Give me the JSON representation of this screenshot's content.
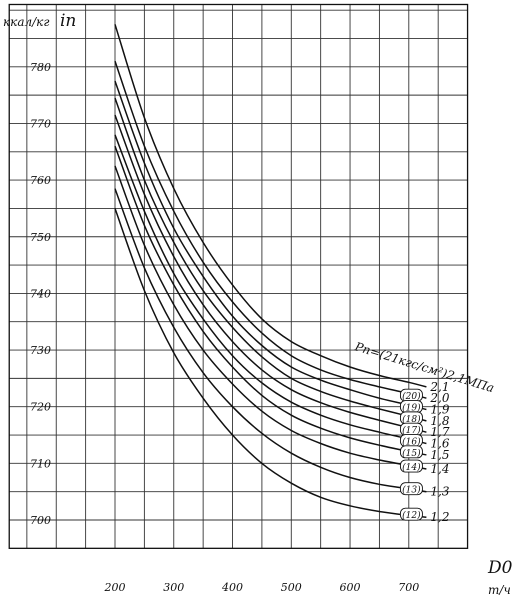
{
  "chart_data": {
    "type": "line",
    "y_unit": "ккал/кг",
    "y_symbol": "iп",
    "x_unit": "т/ч",
    "x_symbol": "D0",
    "xlim": [
      20,
      800
    ],
    "ylim": [
      695,
      791
    ],
    "x_ticks": [
      200,
      300,
      400,
      500,
      600,
      700
    ],
    "x_tick_labels": [
      "200",
      "300",
      "400",
      "500",
      "600",
      "700"
    ],
    "y_ticks": [
      700,
      710,
      720,
      730,
      740,
      750,
      760,
      770,
      780
    ],
    "y_tick_labels": [
      "700",
      "710",
      "720",
      "730",
      "740",
      "750",
      "760",
      "770",
      "780"
    ],
    "grid": true,
    "annotation": "Pп=(21кгс/см²)2,1МПа",
    "series": [
      {
        "name": "2,1",
        "tag": "",
        "x": [
          200,
          250,
          300,
          350,
          400,
          450,
          500,
          550,
          600,
          650,
          700,
          730
        ],
        "y": [
          787.5,
          771.0,
          758.5,
          749.0,
          741.5,
          735.5,
          731.5,
          729.0,
          727.0,
          725.5,
          724.3,
          723.5
        ]
      },
      {
        "name": "2,0",
        "tag": "(20)",
        "x": [
          200,
          250,
          300,
          350,
          400,
          450,
          500,
          550,
          600,
          650,
          700,
          730
        ],
        "y": [
          781.0,
          766.0,
          754.5,
          745.5,
          738.5,
          733.0,
          729.0,
          726.5,
          724.8,
          723.5,
          722.3,
          721.5
        ]
      },
      {
        "name": "1,9",
        "tag": "(19)",
        "x": [
          200,
          250,
          300,
          350,
          400,
          450,
          500,
          550,
          600,
          650,
          700,
          730
        ],
        "y": [
          777.5,
          763.0,
          751.5,
          743.0,
          736.0,
          730.8,
          727.0,
          724.7,
          723.0,
          721.5,
          720.3,
          719.5
        ]
      },
      {
        "name": "1,8",
        "tag": "(18)",
        "x": [
          200,
          250,
          300,
          350,
          400,
          450,
          500,
          550,
          600,
          650,
          700,
          730
        ],
        "y": [
          774.5,
          760.0,
          749.0,
          740.5,
          734.0,
          728.8,
          725.0,
          722.7,
          721.0,
          719.6,
          718.3,
          717.5
        ]
      },
      {
        "name": "1,7",
        "tag": "(17)",
        "x": [
          200,
          250,
          300,
          350,
          400,
          450,
          500,
          550,
          600,
          650,
          700,
          730
        ],
        "y": [
          771.5,
          757.5,
          746.5,
          738.0,
          731.5,
          726.5,
          723.0,
          720.7,
          719.0,
          717.6,
          716.3,
          715.5
        ]
      },
      {
        "name": "1,6",
        "tag": "(16)",
        "x": [
          200,
          250,
          300,
          350,
          400,
          450,
          500,
          550,
          600,
          650,
          700,
          730
        ],
        "y": [
          768.0,
          754.5,
          743.5,
          735.5,
          729.0,
          724.2,
          720.8,
          718.5,
          716.8,
          715.5,
          714.3,
          713.5
        ]
      },
      {
        "name": "1,5",
        "tag": "(15)",
        "x": [
          200,
          250,
          300,
          350,
          400,
          450,
          500,
          550,
          600,
          650,
          700,
          730
        ],
        "y": [
          766.0,
          752.0,
          741.5,
          733.3,
          727.0,
          722.0,
          718.5,
          716.2,
          714.5,
          713.2,
          712.1,
          711.5
        ]
      },
      {
        "name": "1,4",
        "tag": "(14)",
        "x": [
          200,
          250,
          300,
          350,
          400,
          450,
          500,
          550,
          600,
          650,
          700,
          730
        ],
        "y": [
          762.5,
          748.5,
          738.0,
          730.0,
          724.0,
          719.2,
          715.8,
          713.5,
          711.8,
          710.6,
          709.6,
          709.0
        ]
      },
      {
        "name": "1,3",
        "tag": "(13)",
        "x": [
          200,
          250,
          300,
          350,
          400,
          450,
          500,
          550,
          600,
          650,
          700,
          730
        ],
        "y": [
          758.5,
          744.5,
          734.0,
          726.0,
          720.0,
          715.3,
          711.8,
          709.3,
          707.5,
          706.3,
          705.5,
          705.0
        ]
      },
      {
        "name": "1,2",
        "tag": "(12)",
        "x": [
          200,
          250,
          300,
          350,
          400,
          450,
          500,
          550,
          600,
          650,
          700,
          730
        ],
        "y": [
          755.0,
          740.5,
          729.5,
          721.5,
          715.0,
          710.0,
          706.5,
          704.0,
          702.5,
          701.5,
          700.8,
          700.5
        ]
      }
    ]
  }
}
